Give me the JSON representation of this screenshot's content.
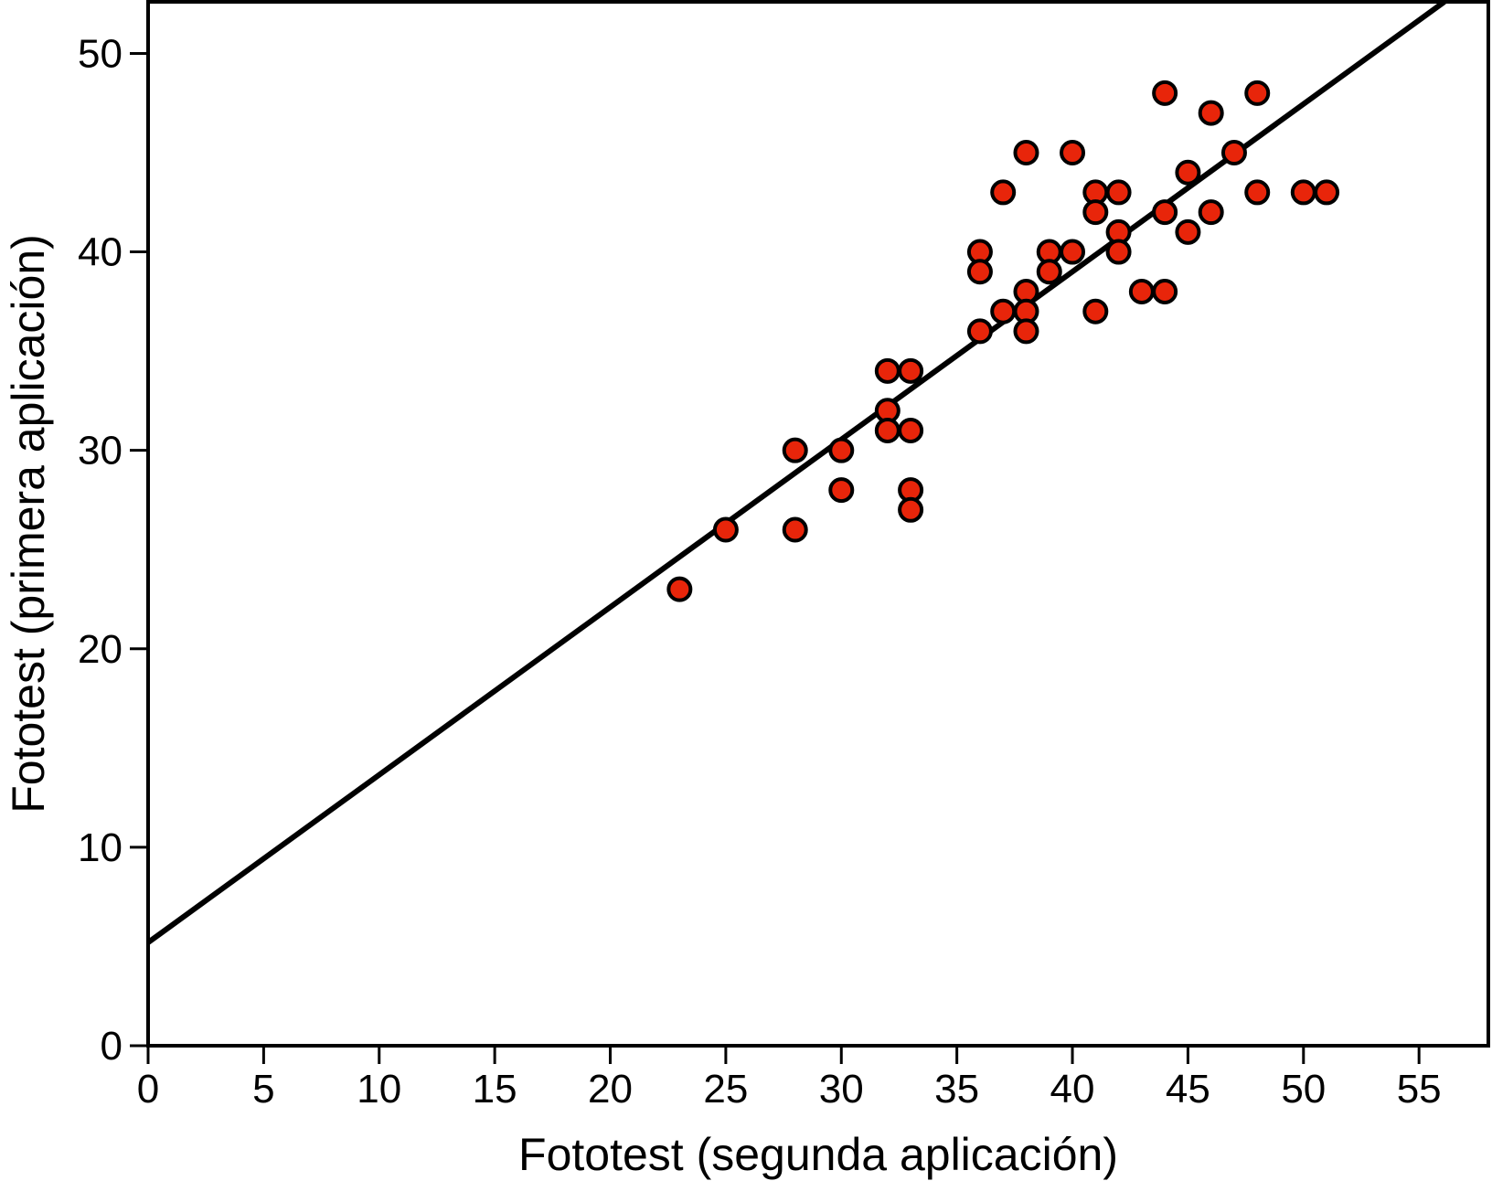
{
  "chart_data": {
    "type": "scatter",
    "title": "",
    "xlabel": "Fototest (segunda aplicación)",
    "ylabel": "Fototest (primera aplicación)",
    "xlim": [
      0,
      58
    ],
    "ylim": [
      0,
      52.6
    ],
    "xticks": [
      0,
      5,
      10,
      15,
      20,
      25,
      30,
      35,
      40,
      45,
      50,
      55
    ],
    "yticks": [
      0,
      10,
      20,
      30,
      40,
      50
    ],
    "grid": false,
    "legend": "none",
    "series": [
      {
        "points": [
          [
            23,
            23
          ],
          [
            25,
            26
          ],
          [
            28,
            30
          ],
          [
            28,
            26
          ],
          [
            30,
            30
          ],
          [
            30,
            28
          ],
          [
            32,
            34
          ],
          [
            32,
            32
          ],
          [
            32,
            31
          ],
          [
            33,
            34
          ],
          [
            33,
            31
          ],
          [
            33,
            28
          ],
          [
            33,
            27
          ],
          [
            36,
            40
          ],
          [
            36,
            39
          ],
          [
            36,
            36
          ],
          [
            37,
            43
          ],
          [
            37,
            37
          ],
          [
            38,
            45
          ],
          [
            38,
            38
          ],
          [
            38,
            37
          ],
          [
            38,
            36
          ],
          [
            39,
            40
          ],
          [
            39,
            39
          ],
          [
            40,
            45
          ],
          [
            40,
            40
          ],
          [
            41,
            43
          ],
          [
            41,
            42
          ],
          [
            41,
            37
          ],
          [
            42,
            43
          ],
          [
            42,
            41
          ],
          [
            42,
            40
          ],
          [
            43,
            38
          ],
          [
            44,
            48
          ],
          [
            44,
            42
          ],
          [
            44,
            38
          ],
          [
            45,
            44
          ],
          [
            45,
            41
          ],
          [
            46,
            47
          ],
          [
            46,
            42
          ],
          [
            47,
            45
          ],
          [
            48,
            48
          ],
          [
            48,
            43
          ],
          [
            50,
            43
          ],
          [
            51,
            43
          ]
        ],
        "color": "#e8250a",
        "edge_color": "#000000"
      }
    ],
    "fit_line": {
      "intercept": 5.2,
      "slope": 0.845,
      "x_end": 56.1,
      "color": "#000000"
    }
  }
}
